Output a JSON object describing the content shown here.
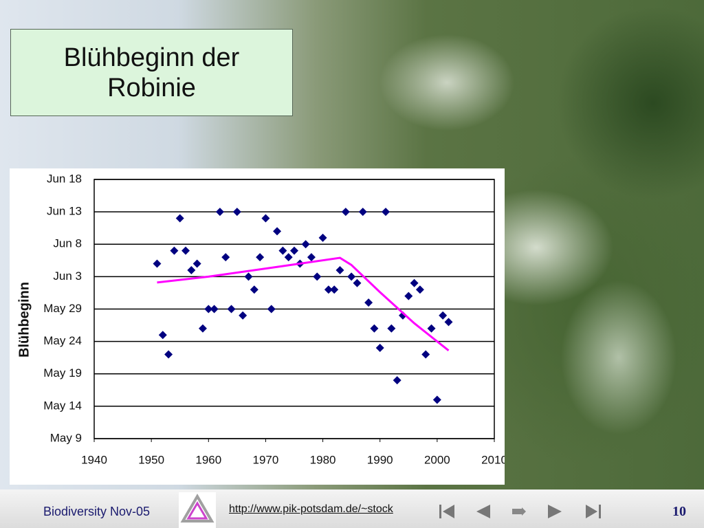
{
  "title_lines": [
    "Blühbeginn der",
    "Robinie"
  ],
  "footer": {
    "left": "Biodiversity Nov-05",
    "url": "http://www.pik-potsdam.de/~stock",
    "page": "10"
  },
  "chart_data": {
    "type": "scatter",
    "y_label": "Blühbeginn",
    "xlim": [
      1940,
      2010
    ],
    "xticks": [
      1940,
      1950,
      1960,
      1970,
      1980,
      1990,
      2000,
      2010
    ],
    "ylim": [
      129,
      169
    ],
    "yticks": [
      {
        "value": 129,
        "label": "May 9"
      },
      {
        "value": 134,
        "label": "May 14"
      },
      {
        "value": 139,
        "label": "May 19"
      },
      {
        "value": 144,
        "label": "May 24"
      },
      {
        "value": 149,
        "label": "May 29"
      },
      {
        "value": 154,
        "label": "Jun 3"
      },
      {
        "value": 159,
        "label": "Jun 8"
      },
      {
        "value": 164,
        "label": "Jun 13"
      },
      {
        "value": 169,
        "label": "Jun 18"
      }
    ],
    "grid": true,
    "series": [
      {
        "color": "#000080",
        "marker": "diamond",
        "x": [
          1951,
          1952,
          1953,
          1954,
          1955,
          1956,
          1957,
          1958,
          1959,
          1960,
          1961,
          1962,
          1963,
          1964,
          1965,
          1966,
          1967,
          1968,
          1969,
          1970,
          1971,
          1972,
          1973,
          1974,
          1975,
          1976,
          1977,
          1978,
          1979,
          1980,
          1981,
          1982,
          1983,
          1984,
          1985,
          1986,
          1987,
          1988,
          1989,
          1990,
          1991,
          1992,
          1993,
          1994,
          1995,
          1996,
          1997,
          1998,
          1999,
          2000,
          2001,
          2002
        ],
        "values": [
          156,
          145,
          142,
          158,
          163,
          158,
          155,
          156,
          146,
          149,
          149,
          164,
          157,
          149,
          164,
          148,
          154,
          152,
          157,
          163,
          149,
          161,
          158,
          157,
          158,
          156,
          159,
          157,
          154,
          160,
          152,
          152,
          155,
          164,
          154,
          153,
          164,
          150,
          146,
          143,
          164,
          146,
          138,
          148,
          151,
          153,
          152,
          142,
          146,
          135,
          148,
          147
        ]
      },
      {
        "color": "#ff00ff",
        "marker": "line",
        "x": [
          1951,
          1960,
          1972,
          1983,
          1985,
          1990,
          1996,
          2002
        ],
        "values": [
          153.1,
          154.0,
          155.5,
          156.9,
          155.8,
          151.6,
          146.8,
          142.6
        ]
      }
    ]
  }
}
